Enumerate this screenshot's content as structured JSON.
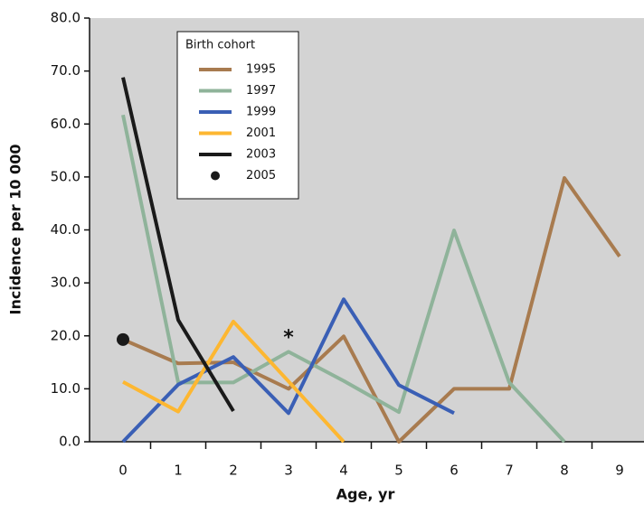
{
  "chart_data": {
    "type": "line",
    "x_label": "Age, yr",
    "y_label": "Incidence per 10 000",
    "categories": [
      "0",
      "1",
      "2",
      "3",
      "4",
      "5",
      "6",
      "7",
      "8",
      "9"
    ],
    "ylim": [
      0,
      80
    ],
    "yticks": [
      {
        "value": 0,
        "label": "0.0"
      },
      {
        "value": 10,
        "label": "10.0"
      },
      {
        "value": 20,
        "label": "20.0"
      },
      {
        "value": 30,
        "label": "30.0"
      },
      {
        "value": 40,
        "label": "40.0"
      },
      {
        "value": 50,
        "label": "50.0"
      },
      {
        "value": 60,
        "label": "60.0"
      },
      {
        "value": 70,
        "label": "70.0"
      },
      {
        "value": 80,
        "label": "80.0"
      }
    ],
    "legend_title": "Birth cohort",
    "series": [
      {
        "name": "1995",
        "color": "#a87b4f",
        "values": [
          19.3,
          14.8,
          15,
          10,
          19.9,
          0,
          10,
          10,
          49.8,
          35
        ]
      },
      {
        "name": "1997",
        "color": "#8fb39a",
        "values": [
          61.7,
          11.2,
          11.2,
          17,
          11.5,
          5.6,
          39.9,
          11.2,
          0,
          null
        ]
      },
      {
        "name": "1999",
        "color": "#3a5fb5",
        "values": [
          0,
          10.8,
          16,
          5.4,
          26.9,
          10.7,
          5.4,
          null,
          null,
          null
        ]
      },
      {
        "name": "2001",
        "color": "#fdb731",
        "values": [
          11.3,
          5.7,
          22.7,
          11.4,
          0,
          null,
          null,
          null,
          null,
          null
        ]
      },
      {
        "name": "2003",
        "color": "#1a1a1a",
        "values": [
          68.8,
          23,
          5.8,
          null,
          null,
          null,
          null,
          null,
          null,
          null
        ]
      },
      {
        "name": "2005",
        "color": "#1a1a1a",
        "values": [
          19.3,
          null,
          null,
          null,
          null,
          null,
          null,
          null,
          null,
          null
        ]
      }
    ],
    "annotations": [
      {
        "text": "*",
        "x": "3",
        "y": 19.5
      }
    ]
  }
}
